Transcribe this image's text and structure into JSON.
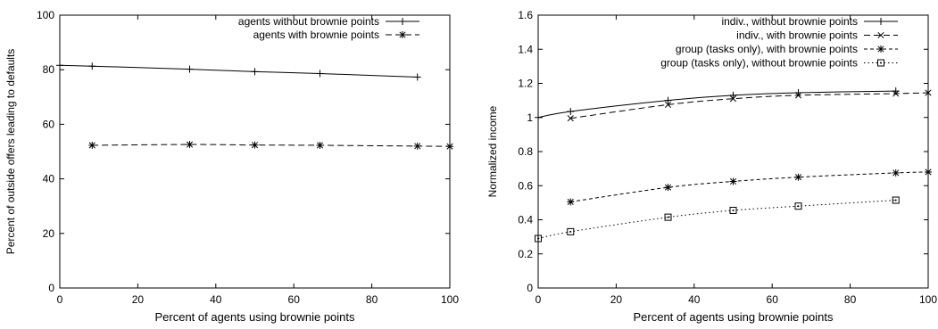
{
  "chart_data": [
    {
      "type": "line",
      "xlabel": "Percent of agents using brownie points",
      "ylabel": "Percent of outside offers leading to defaults",
      "xlim": [
        0,
        100
      ],
      "ylim": [
        0,
        100
      ],
      "xticks": [
        0,
        20,
        40,
        60,
        80,
        100
      ],
      "yticks": [
        0,
        20,
        40,
        60,
        80,
        100
      ],
      "grid": false,
      "legend_position": "top-right",
      "series": [
        {
          "name": "agents without brownie points",
          "marker": "plus",
          "dash": "solid",
          "x": [
            0,
            8.3,
            33.3,
            50,
            66.7,
            91.7
          ],
          "y": [
            81.6,
            81.3,
            80.2,
            79.3,
            78.6,
            77.3
          ]
        },
        {
          "name": "agents with brownie points",
          "marker": "asterisk",
          "dash": "dashed",
          "x": [
            8.3,
            33.3,
            50,
            66.7,
            91.7,
            100
          ],
          "y": [
            52.3,
            52.6,
            52.4,
            52.3,
            52.0,
            51.9
          ]
        }
      ]
    },
    {
      "type": "line",
      "xlabel": "Percent of agents using brownie points",
      "ylabel": "Normalized income",
      "xlim": [
        0,
        100
      ],
      "ylim": [
        0,
        1.6
      ],
      "xticks": [
        0,
        20,
        40,
        60,
        80,
        100
      ],
      "yticks": [
        0,
        0.2,
        0.4,
        0.6,
        0.8,
        1,
        1.2,
        1.4,
        1.6
      ],
      "grid": false,
      "legend_position": "top-right",
      "series": [
        {
          "name": "indiv., without brownie points",
          "marker": "plus",
          "dash": "solid",
          "x": [
            0,
            8.3,
            33.3,
            50,
            66.7,
            91.7
          ],
          "y": [
            1.0,
            1.035,
            1.1,
            1.13,
            1.145,
            1.155
          ]
        },
        {
          "name": "indiv., with brownie points",
          "marker": "cross",
          "dash": "dashed",
          "x": [
            8.3,
            33.3,
            50,
            66.7,
            91.7,
            100
          ],
          "y": [
            0.995,
            1.075,
            1.11,
            1.13,
            1.14,
            1.145
          ]
        },
        {
          "name": "group (tasks only), with brownie points",
          "marker": "asterisk",
          "dash": "dashed-fine",
          "x": [
            8.3,
            33.3,
            50,
            66.7,
            91.7,
            100
          ],
          "y": [
            0.505,
            0.59,
            0.625,
            0.65,
            0.675,
            0.68
          ]
        },
        {
          "name": "group (tasks only), without brownie points",
          "marker": "square-dot",
          "dash": "dotted",
          "x": [
            0,
            8.3,
            33.3,
            50,
            66.7,
            91.7
          ],
          "y": [
            0.29,
            0.33,
            0.415,
            0.455,
            0.48,
            0.515
          ]
        }
      ]
    }
  ]
}
